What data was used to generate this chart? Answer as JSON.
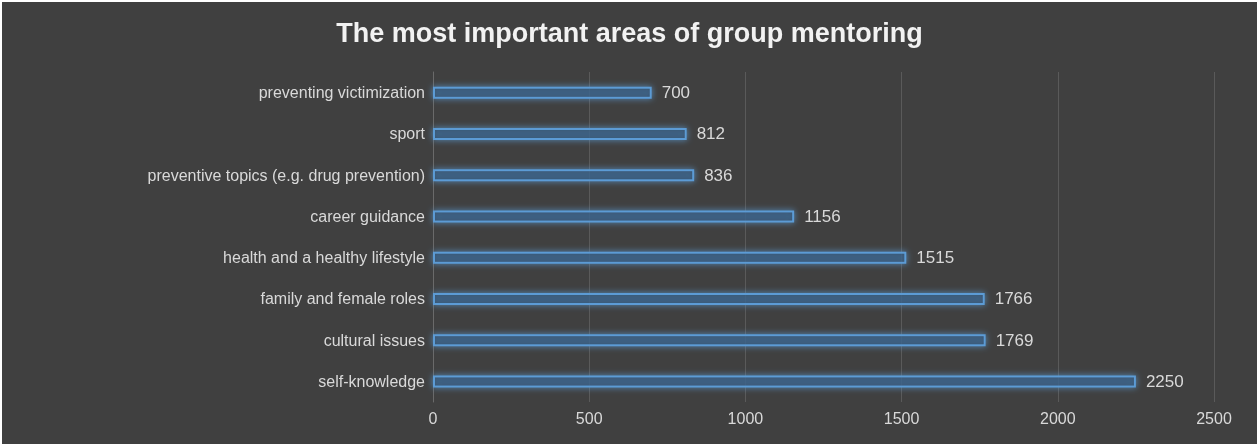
{
  "chart_data": {
    "type": "bar",
    "orientation": "horizontal",
    "title": "The most important areas of group mentoring",
    "categories": [
      "preventing victimization",
      "sport",
      "preventive topics (e.g. drug prevention)",
      "career guidance",
      "health and a healthy lifestyle",
      "family and female roles",
      "cultural issues",
      "self-knowledge"
    ],
    "values": [
      700,
      812,
      836,
      1156,
      1515,
      1766,
      1769,
      2250
    ],
    "color": "#5b9bd5",
    "xlim": [
      0,
      2500
    ],
    "xticks": [
      0,
      500,
      1000,
      1500,
      2000,
      2500
    ],
    "grid": "x",
    "data_labels": true
  }
}
